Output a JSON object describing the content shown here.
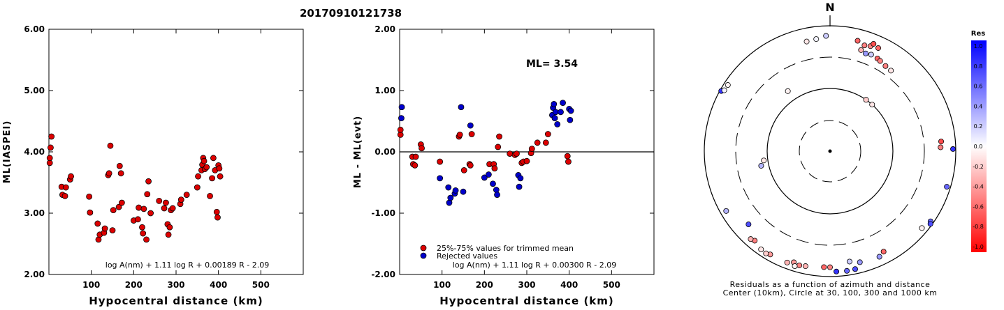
{
  "title": "20170910121738",
  "chart_data": [
    {
      "type": "scatter",
      "id": "ml-vs-distance",
      "xlabel": "Hypocentral distance (km)",
      "ylabel": "ML(IASPEI)",
      "xlim": [
        0,
        600
      ],
      "ylim": [
        2.0,
        6.0
      ],
      "xticks": [
        "100",
        "200",
        "300",
        "400",
        "500"
      ],
      "xtick_values": [
        100,
        200,
        300,
        400,
        500
      ],
      "yticks": [
        "2.00",
        "3.00",
        "4.00",
        "5.00",
        "6.00"
      ],
      "ytick_values": [
        2.0,
        3.0,
        4.0,
        5.0,
        6.0
      ],
      "formula": "log A(nm) + 1.11 log R + 0.00189 R - 2.09",
      "color": "#dd0000",
      "points": [
        [
          2,
          3.82
        ],
        [
          2,
          3.9
        ],
        [
          4,
          4.07
        ],
        [
          6,
          4.25
        ],
        [
          30,
          3.43
        ],
        [
          32,
          3.3
        ],
        [
          38,
          3.28
        ],
        [
          40,
          3.42
        ],
        [
          50,
          3.55
        ],
        [
          52,
          3.6
        ],
        [
          95,
          3.27
        ],
        [
          97,
          3.01
        ],
        [
          115,
          2.83
        ],
        [
          117,
          2.57
        ],
        [
          120,
          2.65
        ],
        [
          130,
          2.68
        ],
        [
          132,
          2.75
        ],
        [
          140,
          3.62
        ],
        [
          142,
          3.65
        ],
        [
          145,
          4.1
        ],
        [
          150,
          2.72
        ],
        [
          152,
          3.05
        ],
        [
          165,
          3.1
        ],
        [
          167,
          3.77
        ],
        [
          170,
          3.65
        ],
        [
          172,
          3.17
        ],
        [
          200,
          2.88
        ],
        [
          210,
          2.9
        ],
        [
          212,
          3.09
        ],
        [
          220,
          2.77
        ],
        [
          222,
          2.67
        ],
        [
          224,
          3.07
        ],
        [
          230,
          2.57
        ],
        [
          232,
          3.31
        ],
        [
          235,
          3.52
        ],
        [
          240,
          3.0
        ],
        [
          260,
          3.2
        ],
        [
          272,
          3.08
        ],
        [
          276,
          3.17
        ],
        [
          280,
          2.82
        ],
        [
          282,
          2.65
        ],
        [
          285,
          2.77
        ],
        [
          288,
          3.05
        ],
        [
          292,
          3.08
        ],
        [
          310,
          3.15
        ],
        [
          312,
          3.22
        ],
        [
          325,
          3.3
        ],
        [
          350,
          3.42
        ],
        [
          352,
          3.6
        ],
        [
          360,
          3.7
        ],
        [
          362,
          3.79
        ],
        [
          364,
          3.9
        ],
        [
          366,
          3.85
        ],
        [
          368,
          3.72
        ],
        [
          372,
          3.75
        ],
        [
          380,
          3.28
        ],
        [
          385,
          3.57
        ],
        [
          388,
          3.9
        ],
        [
          392,
          3.7
        ],
        [
          396,
          3.02
        ],
        [
          398,
          2.93
        ],
        [
          400,
          3.78
        ],
        [
          402,
          3.73
        ],
        [
          404,
          3.6
        ]
      ]
    },
    {
      "type": "scatter",
      "id": "residual-vs-distance",
      "xlabel": "Hypocentral distance (km)",
      "ylabel": "ML - ML(evt)",
      "xlim": [
        0,
        600
      ],
      "ylim": [
        -2.0,
        2.0
      ],
      "xticks": [
        "100",
        "200",
        "300",
        "400",
        "500"
      ],
      "xtick_values": [
        100,
        200,
        300,
        400,
        500
      ],
      "yticks": [
        "-2.00",
        "-1.00",
        "0.00",
        "1.00",
        "2.00"
      ],
      "ytick_values": [
        -2.0,
        -1.0,
        0.0,
        1.0,
        2.0
      ],
      "reference_line": 0.0,
      "annotation": "ML= 3.54",
      "formula": "log A(nm) + 1.11 log R + 0.00300 R - 2.09",
      "legend": [
        {
          "label": "25%-75% values for trimmed mean",
          "color": "#dd0000"
        },
        {
          "label": "Rejected values",
          "color": "#0000cc"
        }
      ],
      "series": [
        {
          "name": "25%-75% values for trimmed mean",
          "color": "#dd0000",
          "points": [
            [
              2,
              0.28
            ],
            [
              2,
              0.36
            ],
            [
              30,
              -0.08
            ],
            [
              32,
              -0.2
            ],
            [
              36,
              -0.22
            ],
            [
              38,
              -0.08
            ],
            [
              50,
              0.12
            ],
            [
              52,
              0.06
            ],
            [
              95,
              -0.16
            ],
            [
              140,
              0.25
            ],
            [
              142,
              0.28
            ],
            [
              152,
              -0.3
            ],
            [
              165,
              -0.2
            ],
            [
              167,
              -0.22
            ],
            [
              170,
              0.29
            ],
            [
              212,
              -0.2
            ],
            [
              222,
              -0.2
            ],
            [
              224,
              -0.27
            ],
            [
              232,
              0.08
            ],
            [
              235,
              0.25
            ],
            [
              260,
              -0.03
            ],
            [
              272,
              -0.05
            ],
            [
              276,
              -0.03
            ],
            [
              288,
              -0.18
            ],
            [
              292,
              -0.16
            ],
            [
              300,
              -0.15
            ],
            [
              310,
              -0.02
            ],
            [
              312,
              0.05
            ],
            [
              325,
              0.15
            ],
            [
              345,
              0.15
            ],
            [
              350,
              0.29
            ],
            [
              396,
              -0.07
            ],
            [
              398,
              -0.16
            ]
          ]
        },
        {
          "name": "Rejected values",
          "color": "#0000cc",
          "points": [
            [
              4,
              0.55
            ],
            [
              5,
              0.73
            ],
            [
              95,
              -0.43
            ],
            [
              115,
              -0.58
            ],
            [
              117,
              -0.83
            ],
            [
              120,
              -0.75
            ],
            [
              130,
              -0.68
            ],
            [
              132,
              -0.63
            ],
            [
              145,
              0.73
            ],
            [
              150,
              -0.65
            ],
            [
              167,
              0.43
            ],
            [
              200,
              -0.42
            ],
            [
              210,
              -0.37
            ],
            [
              220,
              -0.52
            ],
            [
              228,
              -0.62
            ],
            [
              230,
              -0.7
            ],
            [
              280,
              -0.38
            ],
            [
              282,
              -0.57
            ],
            [
              285,
              -0.43
            ],
            [
              360,
              0.6
            ],
            [
              362,
              0.72
            ],
            [
              364,
              0.78
            ],
            [
              366,
              0.55
            ],
            [
              368,
              0.65
            ],
            [
              372,
              0.45
            ],
            [
              380,
              0.65
            ],
            [
              385,
              0.8
            ],
            [
              400,
              0.7
            ],
            [
              402,
              0.52
            ],
            [
              404,
              0.67
            ]
          ]
        }
      ]
    },
    {
      "type": "scatter",
      "id": "azimuth-distance-map",
      "north_label": "N",
      "caption_line1": "Residuals as a function of azimuth and distance",
      "caption_line2": "Center (10km), Circle at 30, 100, 300 and 1000 km",
      "rings_km": [
        30,
        100,
        300,
        1000
      ],
      "points_polar": [
        {
          "az": 348,
          "dist": 600,
          "res": -0.1
        },
        {
          "az": 353,
          "dist": 620,
          "res": 0.05
        },
        {
          "az": 358,
          "dist": 680,
          "res": 0.2
        },
        {
          "az": 14,
          "dist": 640,
          "res": -0.6
        },
        {
          "az": 18,
          "dist": 580,
          "res": -0.5
        },
        {
          "az": 21,
          "dist": 610,
          "res": -0.5
        },
        {
          "az": 22,
          "dist": 690,
          "res": -0.7
        },
        {
          "az": 25,
          "dist": 640,
          "res": -0.6
        },
        {
          "az": 17,
          "dist": 470,
          "res": -0.3
        },
        {
          "az": 20,
          "dist": 440,
          "res": 0.4
        },
        {
          "az": 23,
          "dist": 455,
          "res": 0.2
        },
        {
          "az": 27,
          "dist": 440,
          "res": -0.6
        },
        {
          "az": 29,
          "dist": 425,
          "res": -0.5
        },
        {
          "az": 33,
          "dist": 400,
          "res": -0.5
        },
        {
          "az": 37,
          "dist": 390,
          "res": -0.1
        },
        {
          "az": 325,
          "dist": 145,
          "res": -0.05
        },
        {
          "az": 35,
          "dist": 100,
          "res": -0.2
        },
        {
          "az": 42,
          "dist": 100,
          "res": -0.1
        },
        {
          "az": 85,
          "dist": 580,
          "res": -0.7
        },
        {
          "az": 88,
          "dist": 560,
          "res": -0.5
        },
        {
          "az": 89,
          "dist": 900,
          "res": 0.8
        },
        {
          "az": 107,
          "dist": 870,
          "res": 0.6
        },
        {
          "az": 130,
          "dist": 800,
          "res": -0.05
        },
        {
          "az": 125,
          "dist": 890,
          "res": 0.6
        },
        {
          "az": 126,
          "dist": 940,
          "res": 0.7
        },
        {
          "az": 152,
          "dist": 640,
          "res": -0.6
        },
        {
          "az": 155,
          "dist": 710,
          "res": 0.4
        },
        {
          "az": 165,
          "dist": 670,
          "res": 0.4
        },
        {
          "az": 170,
          "dist": 600,
          "res": 0.2
        },
        {
          "az": 168,
          "dist": 830,
          "res": 0.7
        },
        {
          "az": 172,
          "dist": 840,
          "res": 0.6
        },
        {
          "az": 177,
          "dist": 830,
          "res": 0.8
        },
        {
          "az": 180,
          "dist": 700,
          "res": -0.5
        },
        {
          "az": 183,
          "dist": 700,
          "res": -0.6
        },
        {
          "az": 192,
          "dist": 740,
          "res": -0.3
        },
        {
          "az": 195,
          "dist": 760,
          "res": -0.5
        },
        {
          "az": 198,
          "dist": 720,
          "res": -0.4
        },
        {
          "az": 197,
          "dist": 820,
          "res": -0.05
        },
        {
          "az": 201,
          "dist": 790,
          "res": -0.3
        },
        {
          "az": 210,
          "dist": 790,
          "res": -0.4
        },
        {
          "az": 212,
          "dist": 830,
          "res": -0.2
        },
        {
          "az": 215,
          "dist": 810,
          "res": -0.1
        },
        {
          "az": 220,
          "dist": 720,
          "res": -0.5
        },
        {
          "az": 222,
          "dist": 760,
          "res": -0.3
        },
        {
          "az": 228,
          "dist": 540,
          "res": 0.7
        },
        {
          "az": 240,
          "dist": 800,
          "res": 0.3
        },
        {
          "az": 258,
          "dist": 130,
          "res": 0.3
        },
        {
          "az": 262,
          "dist": 115,
          "res": -0.1
        },
        {
          "az": 299,
          "dist": 950,
          "res": 0.8
        },
        {
          "az": 300,
          "dist": 870,
          "res": 0.05
        },
        {
          "az": 303,
          "dist": 860,
          "res": -0.05
        }
      ],
      "colorbar": {
        "title": "Res",
        "ticks": [
          "1.0",
          "0.8",
          "0.6",
          "0.4",
          "0.2",
          "0.0",
          "-0.2",
          "-0.4",
          "-0.6",
          "-0.8",
          "-1.0"
        ],
        "top_color": "#0000ff",
        "mid_color": "#ffffff",
        "bottom_color": "#ff0000"
      }
    }
  ]
}
